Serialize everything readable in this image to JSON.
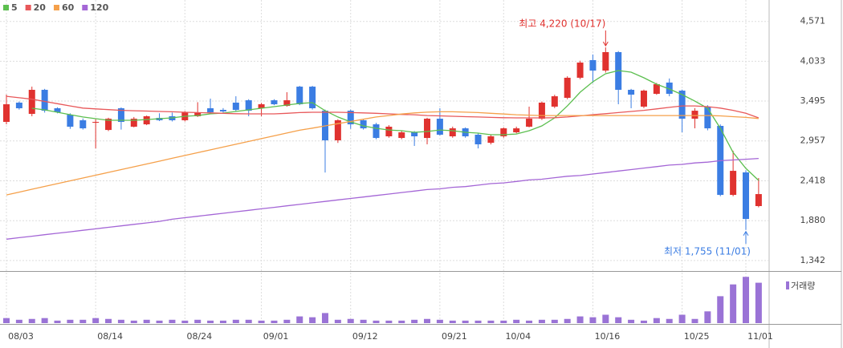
{
  "chart_data": {
    "type": "candlestick",
    "categories": [
      "08/03",
      null,
      null,
      null,
      null,
      null,
      null,
      "08/14",
      null,
      null,
      null,
      null,
      null,
      null,
      "08/24",
      null,
      null,
      null,
      null,
      null,
      "09/01",
      null,
      null,
      null,
      null,
      null,
      null,
      "09/12",
      null,
      null,
      null,
      null,
      null,
      null,
      "09/21",
      null,
      null,
      null,
      null,
      "10/04",
      null,
      null,
      null,
      null,
      null,
      null,
      "10/16",
      null,
      null,
      null,
      null,
      null,
      null,
      "10/25",
      null,
      null,
      null,
      null,
      "11/01",
      null
    ],
    "open": [
      3214,
      3474,
      3322,
      3647,
      3398,
      3311,
      3236,
      3203,
      3105,
      3398,
      3149,
      3181,
      3268,
      3290,
      3236,
      3290,
      3398,
      3376,
      3474,
      3506,
      3398,
      3506,
      3430,
      3690,
      3690,
      3365,
      2965,
      3365,
      3236,
      3181,
      3019,
      2997,
      3073,
      2997,
      3257,
      3019,
      3127,
      3041,
      2932,
      3019,
      3073,
      3149,
      3257,
      3420,
      3539,
      3810,
      4048,
      3907,
      4156,
      3647,
      3420,
      3593,
      3745,
      3636,
      3257,
      3420,
      3160,
      2228,
      2532,
      2077
    ],
    "high": [
      3582,
      3490,
      3690,
      3660,
      3410,
      3330,
      3260,
      3250,
      3270,
      3410,
      3280,
      3300,
      3330,
      3340,
      3360,
      3480,
      3528,
      3400,
      3560,
      3520,
      3470,
      3520,
      3615,
      3700,
      3700,
      3380,
      3250,
      3380,
      3250,
      3200,
      3170,
      3100,
      3090,
      3270,
      3398,
      3150,
      3140,
      3060,
      3040,
      3140,
      3150,
      3420,
      3490,
      3580,
      3830,
      4040,
      4124,
      4220,
      4170,
      3660,
      3650,
      3740,
      3800,
      3650,
      3400,
      3440,
      3180,
      2824,
      2560,
      2456
    ],
    "low": [
      3181,
      3380,
      3290,
      3340,
      3330,
      3120,
      3110,
      2856,
      3090,
      3110,
      3140,
      3170,
      3225,
      3220,
      3220,
      3280,
      3330,
      3340,
      3360,
      3290,
      3290,
      3440,
      3420,
      3440,
      3380,
      2530,
      2930,
      3120,
      3110,
      2980,
      3000,
      2980,
      2889,
      2911,
      3030,
      3000,
      3000,
      2856,
      2910,
      3000,
      3060,
      3140,
      3240,
      3400,
      3520,
      3790,
      3740,
      3880,
      3452,
      3398,
      3400,
      3580,
      3560,
      3073,
      3127,
      3100,
      2210,
      2210,
      1755,
      2060
    ],
    "close": [
      3452,
      3398,
      3647,
      3365,
      3344,
      3149,
      3127,
      3214,
      3257,
      3214,
      3257,
      3290,
      3236,
      3236,
      3344,
      3344,
      3344,
      3355,
      3376,
      3365,
      3452,
      3452,
      3506,
      3452,
      3398,
      2965,
      3236,
      3181,
      3127,
      2997,
      3149,
      3073,
      3019,
      3257,
      3041,
      3127,
      3019,
      2911,
      3019,
      3127,
      3127,
      3257,
      3474,
      3560,
      3810,
      4015,
      3907,
      4156,
      3647,
      3582,
      3636,
      3723,
      3593,
      3257,
      3365,
      3127,
      2228,
      2553,
      1903,
      2239
    ],
    "up_color": "#e0322f",
    "down_color": "#3b7de3",
    "ylim": [
      1200,
      4860
    ],
    "yticks": [
      {
        "value": 1342,
        "label": "1,342"
      },
      {
        "value": 1880,
        "label": "1,880"
      },
      {
        "value": 2418,
        "label": "2,418"
      },
      {
        "value": 2957,
        "label": "2,957"
      },
      {
        "value": 3495,
        "label": "3,495"
      },
      {
        "value": 4033,
        "label": "4,033"
      },
      {
        "value": 4571,
        "label": "4,571"
      }
    ],
    "grid": true,
    "series": [
      {
        "name": "5",
        "color": "#5cbf4f",
        "values": [
          null,
          null,
          3398,
          3376,
          3344,
          3311,
          3280,
          3257,
          3236,
          3236,
          3236,
          3246,
          3257,
          3268,
          3290,
          3300,
          3322,
          3333,
          3355,
          3376,
          3398,
          3420,
          3441,
          3463,
          3474,
          3365,
          3280,
          3214,
          3160,
          3127,
          3105,
          3095,
          3073,
          3084,
          3105,
          3095,
          3073,
          3062,
          3041,
          3041,
          3051,
          3095,
          3160,
          3268,
          3430,
          3615,
          3755,
          3864,
          3907,
          3885,
          3810,
          3723,
          3658,
          3582,
          3495,
          3398,
          3127,
          2802,
          2586,
          2424
        ]
      },
      {
        "name": "20",
        "color": "#e8585a",
        "values": [
          3560,
          3540,
          3520,
          3490,
          3460,
          3430,
          3400,
          3390,
          3380,
          3370,
          3365,
          3360,
          3355,
          3350,
          3344,
          3340,
          3335,
          3330,
          3325,
          3322,
          3322,
          3322,
          3330,
          3340,
          3344,
          3344,
          3344,
          3340,
          3335,
          3330,
          3322,
          3315,
          3310,
          3300,
          3295,
          3290,
          3285,
          3280,
          3275,
          3270,
          3268,
          3268,
          3268,
          3270,
          3280,
          3295,
          3311,
          3325,
          3340,
          3355,
          3370,
          3390,
          3410,
          3430,
          3430,
          3420,
          3400,
          3370,
          3330,
          3268
        ]
      },
      {
        "name": "60",
        "color": "#f5a04a",
        "values": [
          2228,
          2266,
          2304,
          2342,
          2380,
          2418,
          2456,
          2494,
          2532,
          2570,
          2608,
          2646,
          2684,
          2722,
          2760,
          2798,
          2836,
          2874,
          2912,
          2950,
          2988,
          3026,
          3064,
          3102,
          3130,
          3160,
          3190,
          3220,
          3250,
          3280,
          3300,
          3320,
          3335,
          3345,
          3350,
          3350,
          3345,
          3340,
          3330,
          3320,
          3310,
          3305,
          3300,
          3300,
          3300,
          3300,
          3300,
          3300,
          3300,
          3300,
          3300,
          3300,
          3300,
          3300,
          3300,
          3300,
          3295,
          3285,
          3275,
          3260
        ]
      },
      {
        "name": "120",
        "color": "#a466d6",
        "values": [
          1630,
          1650,
          1670,
          1690,
          1710,
          1730,
          1750,
          1770,
          1790,
          1810,
          1830,
          1850,
          1870,
          1900,
          1920,
          1940,
          1960,
          1980,
          2000,
          2020,
          2040,
          2060,
          2080,
          2100,
          2120,
          2140,
          2160,
          2180,
          2200,
          2220,
          2240,
          2260,
          2280,
          2300,
          2310,
          2330,
          2340,
          2360,
          2380,
          2390,
          2410,
          2430,
          2440,
          2460,
          2480,
          2490,
          2510,
          2530,
          2550,
          2570,
          2590,
          2610,
          2630,
          2640,
          2660,
          2670,
          2690,
          2700,
          2710,
          2720
        ]
      }
    ],
    "volume": {
      "name": "거래량",
      "color": "#9a73d6",
      "ylim": [
        0,
        60
      ],
      "values": [
        6,
        4,
        5,
        6,
        3,
        4,
        4,
        6,
        5,
        4,
        3,
        4,
        3,
        4,
        3,
        4,
        3,
        3,
        4,
        4,
        3,
        3,
        4,
        8,
        7,
        12,
        4,
        5,
        4,
        3,
        3,
        3,
        4,
        5,
        4,
        3,
        3,
        3,
        3,
        3,
        4,
        3,
        4,
        4,
        5,
        8,
        7,
        10,
        7,
        4,
        3,
        6,
        5,
        10,
        5,
        14,
        32,
        46,
        55,
        48
      ]
    },
    "annotations": {
      "high": "최고 4,220 (10/17)",
      "low": "최저 1,755 (11/01)"
    }
  }
}
